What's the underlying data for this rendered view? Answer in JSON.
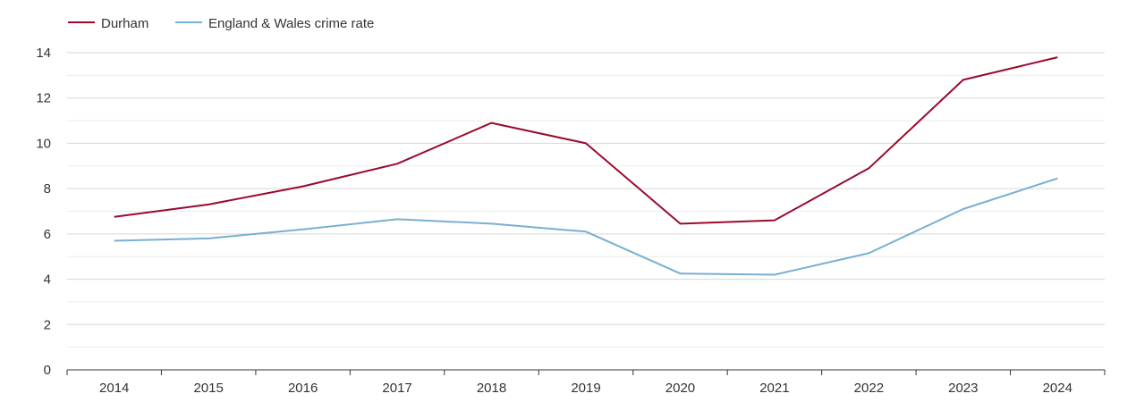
{
  "chart_data": {
    "type": "line",
    "title": "",
    "xlabel": "",
    "ylabel": "",
    "categories": [
      "2014",
      "2015",
      "2016",
      "2017",
      "2018",
      "2019",
      "2020",
      "2021",
      "2022",
      "2023",
      "2024"
    ],
    "ylim": [
      0,
      14
    ],
    "yticks": [
      "0",
      "2",
      "4",
      "6",
      "8",
      "10",
      "12",
      "14"
    ],
    "grid": true,
    "legend_position": "top-left",
    "series": [
      {
        "name": "Durham",
        "color": "#9a0a2e",
        "values": [
          6.75,
          7.3,
          8.1,
          9.1,
          10.9,
          10.0,
          6.45,
          6.6,
          8.9,
          12.8,
          13.8
        ]
      },
      {
        "name": "England & Wales crime rate",
        "color": "#78b0d2",
        "values": [
          5.7,
          5.8,
          6.2,
          6.65,
          6.45,
          6.1,
          4.25,
          4.2,
          5.15,
          7.1,
          8.45
        ]
      }
    ]
  }
}
